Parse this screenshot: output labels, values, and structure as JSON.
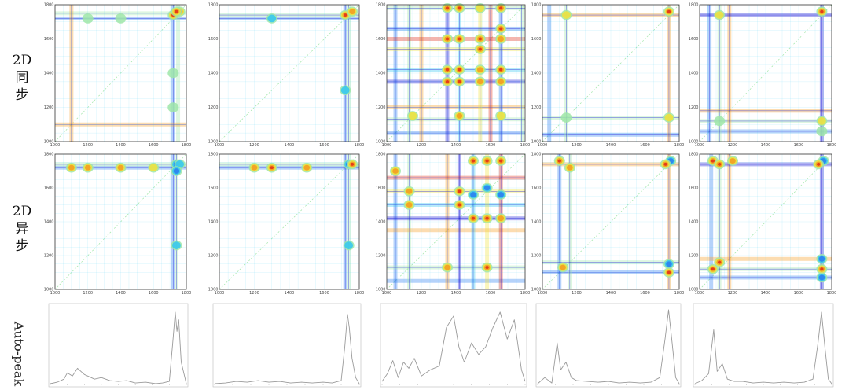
{
  "row_labels": {
    "sync": [
      "2D",
      "同",
      "步"
    ],
    "async": [
      "2D",
      "异",
      "步"
    ],
    "auto": "Auto-peak"
  },
  "colors": {
    "jet": [
      "#1b1bd8",
      "#2a7df0",
      "#33c7f2",
      "#9fe6a8",
      "#f2e23a",
      "#f59a1e",
      "#e02a17"
    ],
    "axis": "#333333",
    "auto_line": "#9a9a9a"
  },
  "chart_data": [
    {
      "type": "heatmap",
      "panel": "sync-1",
      "row": "2D 同步",
      "xlim": [
        1000,
        1800
      ],
      "ylim": [
        1000,
        1800
      ],
      "x_ticks": [
        "1000",
        "1200",
        "1400",
        "1600",
        "1800"
      ],
      "y_ticks": [
        "1000",
        "1200",
        "1400",
        "1600",
        "1800"
      ],
      "peaks": [
        [
          1720,
          1740,
          7
        ],
        [
          1760,
          1760,
          6
        ],
        [
          1740,
          1760,
          6
        ],
        [
          1720,
          1400,
          3
        ],
        [
          1720,
          1200,
          3
        ],
        [
          1400,
          1720,
          3
        ],
        [
          1200,
          1720,
          3
        ]
      ],
      "lines": [
        1720,
        1750,
        1100
      ]
    },
    {
      "type": "heatmap",
      "panel": "sync-2",
      "row": "2D 同步",
      "xlim": [
        1000,
        1800
      ],
      "ylim": [
        1000,
        1800
      ],
      "x_ticks": [
        "1000",
        "1200",
        "1400",
        "1600",
        "1800"
      ],
      "y_ticks": [
        "1000",
        "1200",
        "1400",
        "1600",
        "1800"
      ],
      "peaks": [
        [
          1720,
          1740,
          6
        ],
        [
          1760,
          1760,
          5
        ],
        [
          1720,
          1300,
          2
        ],
        [
          1300,
          1720,
          2
        ]
      ],
      "lines": [
        1720,
        1740
      ]
    },
    {
      "type": "heatmap",
      "panel": "sync-3",
      "row": "2D 同步",
      "xlim": [
        1000,
        1800
      ],
      "ylim": [
        1000,
        1800
      ],
      "x_ticks": [
        "1000",
        "1200",
        "1400",
        "1600",
        "1800"
      ],
      "y_ticks": [
        "1000",
        "1200",
        "1400",
        "1600",
        "1800"
      ],
      "peaks": [
        [
          1350,
          1780,
          6
        ],
        [
          1420,
          1780,
          7
        ],
        [
          1540,
          1780,
          4
        ],
        [
          1660,
          1780,
          7
        ],
        [
          1350,
          1600,
          6
        ],
        [
          1420,
          1600,
          6
        ],
        [
          1540,
          1600,
          6
        ],
        [
          1660,
          1600,
          5
        ],
        [
          1350,
          1420,
          6
        ],
        [
          1420,
          1420,
          6
        ],
        [
          1540,
          1420,
          5
        ],
        [
          1660,
          1420,
          7
        ],
        [
          1350,
          1350,
          6
        ],
        [
          1420,
          1350,
          6
        ],
        [
          1540,
          1350,
          5
        ],
        [
          1660,
          1350,
          5
        ],
        [
          1540,
          1540,
          6
        ],
        [
          1660,
          1660,
          6
        ],
        [
          1150,
          1150,
          4
        ],
        [
          1420,
          1150,
          5
        ],
        [
          1660,
          1150,
          4
        ]
      ],
      "lines": [
        1050,
        1130,
        1200,
        1350,
        1420,
        1540,
        1600,
        1660,
        1780
      ]
    },
    {
      "type": "heatmap",
      "panel": "sync-4",
      "row": "2D 同步",
      "xlim": [
        1000,
        1800
      ],
      "ylim": [
        1000,
        1800
      ],
      "x_ticks": [
        "1000",
        "1200",
        "1400",
        "1600",
        "1800"
      ],
      "y_ticks": [
        "1000",
        "1200",
        "1400",
        "1600",
        "1800"
      ],
      "peaks": [
        [
          1740,
          1760,
          7
        ],
        [
          1740,
          1140,
          4
        ],
        [
          1140,
          1740,
          4
        ],
        [
          1140,
          1140,
          3
        ]
      ],
      "lines": [
        1040,
        1140,
        1740
      ]
    },
    {
      "type": "heatmap",
      "panel": "sync-5",
      "row": "2D 同步",
      "xlim": [
        1000,
        1800
      ],
      "ylim": [
        1000,
        1800
      ],
      "x_ticks": [
        "1000",
        "1200",
        "1400",
        "1600",
        "1800"
      ],
      "y_ticks": [
        "1000",
        "1200",
        "1400",
        "1600",
        "1800"
      ],
      "peaks": [
        [
          1740,
          1760,
          7
        ],
        [
          1740,
          1120,
          4
        ],
        [
          1120,
          1740,
          4
        ],
        [
          1120,
          1120,
          3
        ],
        [
          1740,
          1060,
          3
        ]
      ],
      "lines": [
        1060,
        1120,
        1180,
        1740
      ]
    },
    {
      "type": "heatmap",
      "panel": "async-1",
      "row": "2D 异步",
      "xlim": [
        1000,
        1800
      ],
      "ylim": [
        1000,
        1800
      ],
      "x_ticks": [
        "1000",
        "1200",
        "1400",
        "1600",
        "1800"
      ],
      "y_ticks": [
        "1000",
        "1200",
        "1400",
        "1600",
        "1800"
      ],
      "peaks": [
        [
          1740,
          1740,
          1
        ],
        [
          1760,
          1740,
          2
        ],
        [
          1740,
          1700,
          1
        ],
        [
          1740,
          1260,
          2
        ],
        [
          1100,
          1720,
          5
        ],
        [
          1200,
          1720,
          5
        ],
        [
          1400,
          1720,
          5
        ],
        [
          1600,
          1720,
          4
        ]
      ],
      "lines": [
        1720,
        1740
      ]
    },
    {
      "type": "heatmap",
      "panel": "async-2",
      "row": "2D 异步",
      "xlim": [
        1000,
        1800
      ],
      "ylim": [
        1000,
        1800
      ],
      "x_ticks": [
        "1000",
        "1200",
        "1400",
        "1600",
        "1800"
      ],
      "y_ticks": [
        "1000",
        "1200",
        "1400",
        "1600",
        "1800"
      ],
      "peaks": [
        [
          1740,
          1740,
          1
        ],
        [
          1760,
          1740,
          6
        ],
        [
          1740,
          1260,
          2
        ],
        [
          1200,
          1720,
          5
        ],
        [
          1300,
          1720,
          6
        ],
        [
          1500,
          1720,
          5
        ]
      ],
      "lines": [
        1720,
        1740
      ]
    },
    {
      "type": "heatmap",
      "panel": "async-3",
      "row": "2D 异步",
      "xlim": [
        1000,
        1800
      ],
      "ylim": [
        1000,
        1800
      ],
      "x_ticks": [
        "1000",
        "1200",
        "1400",
        "1600",
        "1800"
      ],
      "y_ticks": [
        "1000",
        "1200",
        "1400",
        "1600",
        "1800"
      ],
      "peaks": [
        [
          1500,
          1760,
          6
        ],
        [
          1580,
          1760,
          7
        ],
        [
          1660,
          1760,
          6
        ],
        [
          1500,
          1420,
          6
        ],
        [
          1580,
          1420,
          7
        ],
        [
          1660,
          1420,
          5
        ],
        [
          1500,
          1560,
          1
        ],
        [
          1660,
          1560,
          1
        ],
        [
          1580,
          1600,
          1
        ],
        [
          1420,
          1500,
          6
        ],
        [
          1420,
          1580,
          6
        ],
        [
          1130,
          1500,
          5
        ],
        [
          1130,
          1580,
          5
        ],
        [
          1050,
          1700,
          5
        ],
        [
          1350,
          1130,
          5
        ],
        [
          1580,
          1130,
          6
        ]
      ],
      "lines": [
        1050,
        1130,
        1350,
        1420,
        1500,
        1580,
        1660
      ]
    },
    {
      "type": "heatmap",
      "panel": "async-4",
      "row": "2D 异步",
      "xlim": [
        1000,
        1800
      ],
      "ylim": [
        1000,
        1800
      ],
      "x_ticks": [
        "1000",
        "1200",
        "1400",
        "1600",
        "1800"
      ],
      "y_ticks": [
        "1000",
        "1200",
        "1400",
        "1600",
        "1800"
      ],
      "peaks": [
        [
          1750,
          1760,
          1
        ],
        [
          1720,
          1740,
          6
        ],
        [
          1100,
          1760,
          6
        ],
        [
          1160,
          1720,
          5
        ],
        [
          1740,
          1150,
          1
        ],
        [
          1740,
          1100,
          6
        ],
        [
          1120,
          1130,
          5
        ]
      ],
      "lines": [
        1100,
        1160,
        1740
      ]
    },
    {
      "type": "heatmap",
      "panel": "async-5",
      "row": "2D 异步",
      "xlim": [
        1000,
        1800
      ],
      "ylim": [
        1000,
        1800
      ],
      "x_ticks": [
        "1000",
        "1200",
        "1400",
        "1600",
        "1800"
      ],
      "y_ticks": [
        "1000",
        "1200",
        "1400",
        "1600",
        "1800"
      ],
      "peaks": [
        [
          1750,
          1760,
          1
        ],
        [
          1720,
          1740,
          7
        ],
        [
          1080,
          1760,
          6
        ],
        [
          1120,
          1740,
          7
        ],
        [
          1200,
          1760,
          5
        ],
        [
          1740,
          1180,
          1
        ],
        [
          1740,
          1120,
          7
        ],
        [
          1740,
          1070,
          1
        ],
        [
          1120,
          1160,
          7
        ],
        [
          1080,
          1120,
          6
        ]
      ],
      "lines": [
        1070,
        1120,
        1180,
        1740
      ]
    },
    {
      "type": "line",
      "panel": "auto-1",
      "row": "Auto-peak",
      "xlim": [
        1000,
        1800
      ],
      "ylim": [
        0,
        1
      ],
      "x": [
        1000,
        1040,
        1080,
        1100,
        1130,
        1160,
        1200,
        1260,
        1300,
        1350,
        1400,
        1450,
        1500,
        1560,
        1620,
        1660,
        1700,
        1720,
        1735,
        1745,
        1755,
        1770,
        1800
      ],
      "y": [
        0.02,
        0.04,
        0.08,
        0.16,
        0.12,
        0.22,
        0.14,
        0.08,
        0.1,
        0.06,
        0.05,
        0.06,
        0.03,
        0.04,
        0.02,
        0.03,
        0.05,
        0.55,
        0.95,
        0.7,
        0.85,
        0.3,
        0.02
      ]
    },
    {
      "type": "line",
      "panel": "auto-2",
      "row": "Auto-peak",
      "xlim": [
        1000,
        1800
      ],
      "ylim": [
        0,
        1
      ],
      "x": [
        1000,
        1060,
        1120,
        1180,
        1240,
        1300,
        1360,
        1420,
        1480,
        1540,
        1600,
        1650,
        1700,
        1720,
        1735,
        1745,
        1760,
        1780,
        1800
      ],
      "y": [
        0.02,
        0.03,
        0.05,
        0.04,
        0.06,
        0.04,
        0.05,
        0.03,
        0.04,
        0.03,
        0.04,
        0.03,
        0.06,
        0.5,
        0.92,
        0.75,
        0.35,
        0.1,
        0.02
      ]
    },
    {
      "type": "line",
      "panel": "auto-3",
      "row": "Auto-peak",
      "xlim": [
        1000,
        1800
      ],
      "ylim": [
        0,
        1
      ],
      "x": [
        1000,
        1030,
        1060,
        1090,
        1120,
        1150,
        1180,
        1220,
        1270,
        1320,
        1360,
        1400,
        1430,
        1460,
        1500,
        1540,
        1580,
        1620,
        1660,
        1700,
        1740,
        1780,
        1800
      ],
      "y": [
        0.05,
        0.15,
        0.32,
        0.1,
        0.3,
        0.22,
        0.35,
        0.12,
        0.2,
        0.25,
        0.75,
        0.9,
        0.5,
        0.3,
        0.55,
        0.4,
        0.5,
        0.75,
        0.95,
        0.6,
        0.85,
        0.2,
        0.05
      ]
    },
    {
      "type": "line",
      "panel": "auto-4",
      "row": "Auto-peak",
      "xlim": [
        1000,
        1800
      ],
      "ylim": [
        0,
        1
      ],
      "x": [
        1000,
        1040,
        1080,
        1110,
        1130,
        1160,
        1190,
        1220,
        1280,
        1340,
        1400,
        1460,
        1520,
        1580,
        1640,
        1690,
        1720,
        1740,
        1760,
        1780,
        1800
      ],
      "y": [
        0.02,
        0.1,
        0.03,
        0.55,
        0.2,
        0.3,
        0.1,
        0.06,
        0.05,
        0.04,
        0.05,
        0.03,
        0.04,
        0.03,
        0.04,
        0.1,
        0.6,
        0.98,
        0.55,
        0.1,
        0.02
      ]
    },
    {
      "type": "line",
      "panel": "auto-5",
      "row": "Auto-peak",
      "xlim": [
        1000,
        1800
      ],
      "ylim": [
        0,
        1
      ],
      "x": [
        1000,
        1040,
        1080,
        1110,
        1130,
        1160,
        1190,
        1230,
        1280,
        1340,
        1400,
        1460,
        1520,
        1580,
        1640,
        1690,
        1720,
        1740,
        1760,
        1780,
        1800
      ],
      "y": [
        0.02,
        0.06,
        0.15,
        0.72,
        0.18,
        0.28,
        0.08,
        0.05,
        0.05,
        0.03,
        0.04,
        0.03,
        0.04,
        0.03,
        0.04,
        0.08,
        0.55,
        0.95,
        0.5,
        0.08,
        0.02
      ]
    }
  ]
}
